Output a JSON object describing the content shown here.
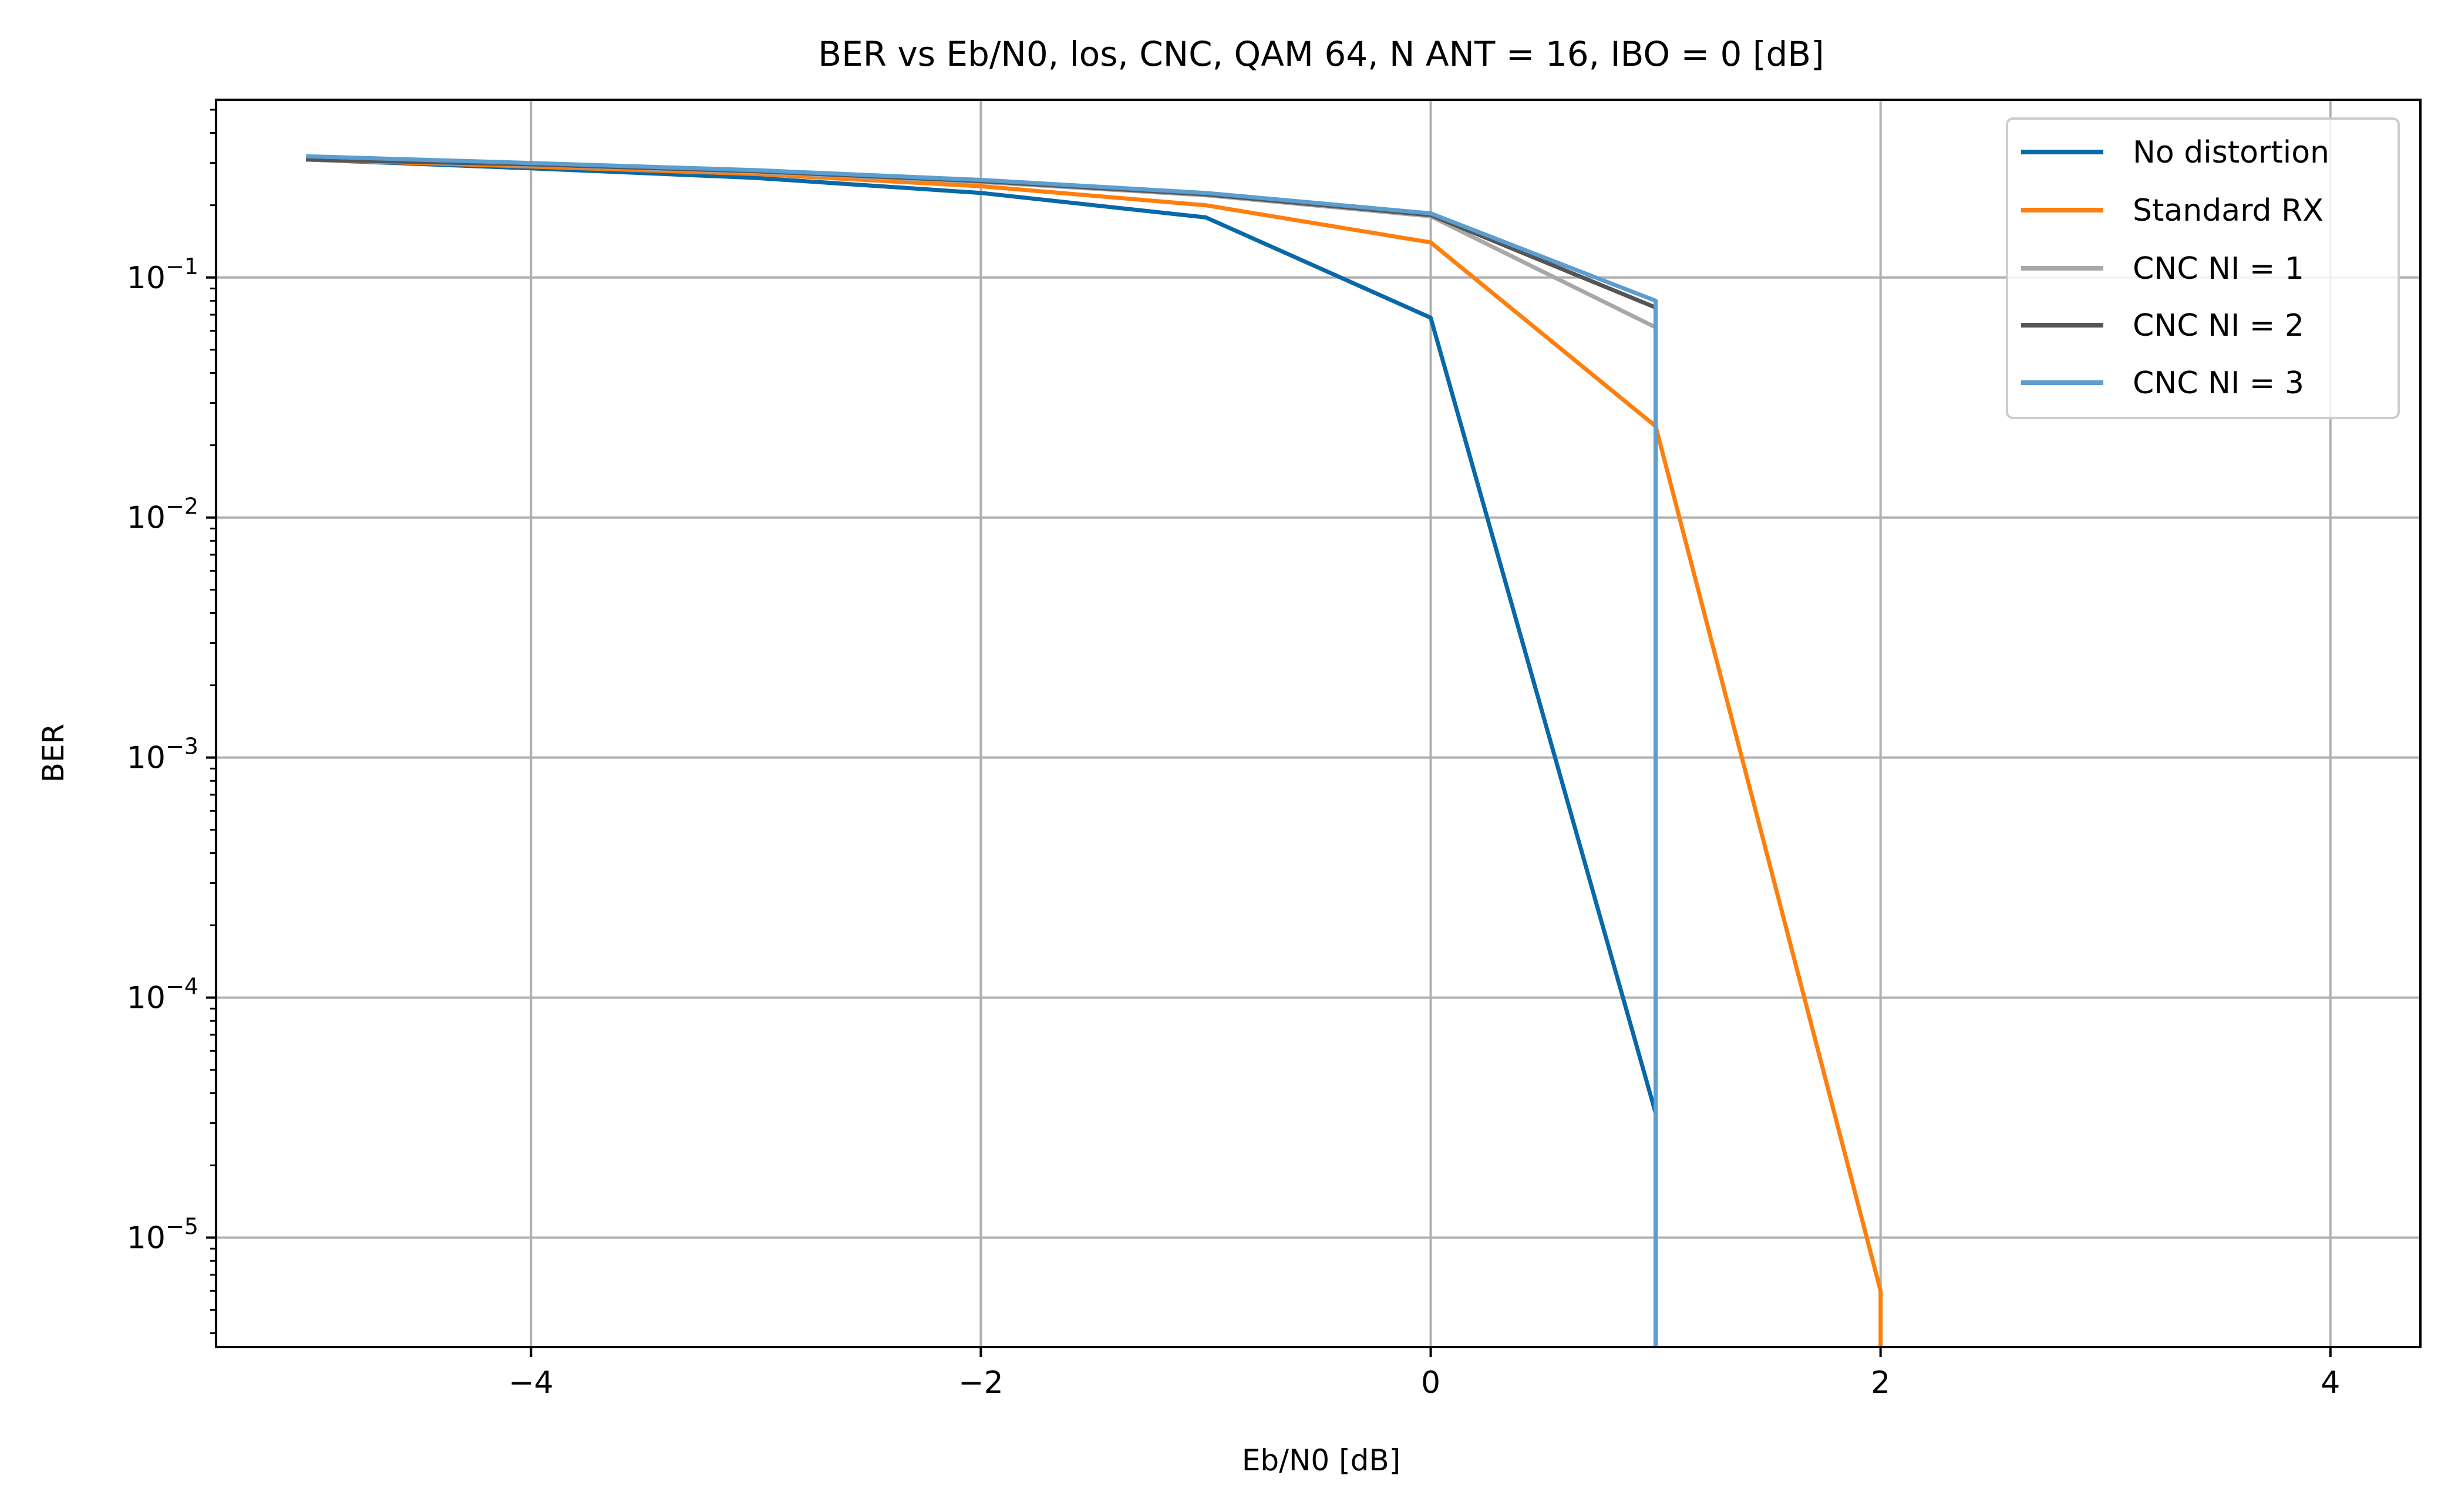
{
  "chart_data": {
    "type": "line",
    "title": "BER vs Eb/N0, los, CNC, QAM 64, N ANT = 16, IBO = 0 [dB]",
    "xlabel": "Eb/N0 [dB]",
    "ylabel": "BER",
    "x_scale": "linear",
    "y_scale": "log",
    "xlim": [
      -5.4,
      4.4
    ],
    "ylim": [
      3.5e-06,
      0.55
    ],
    "grid": true,
    "legend_position": "top-right",
    "x_ticks": [
      {
        "value": -4,
        "label": "−4"
      },
      {
        "value": -2,
        "label": "−2"
      },
      {
        "value": 0,
        "label": "0"
      },
      {
        "value": 2,
        "label": "2"
      },
      {
        "value": 4,
        "label": "4"
      }
    ],
    "y_ticks": [
      {
        "value": 0.1,
        "base": "10",
        "exp": "−1"
      },
      {
        "value": 0.01,
        "base": "10",
        "exp": "−2"
      },
      {
        "value": 0.001,
        "base": "10",
        "exp": "−3"
      },
      {
        "value": 0.0001,
        "base": "10",
        "exp": "−4"
      },
      {
        "value": 1e-05,
        "base": "10",
        "exp": "−5"
      }
    ],
    "series": [
      {
        "name": "No distortion",
        "color": "#0868a8",
        "x": [
          -5,
          -4,
          -3,
          -2,
          -1,
          0,
          1,
          1
        ],
        "y": [
          0.31,
          0.285,
          0.26,
          0.225,
          0.178,
          0.068,
          3.3e-05,
          1e-09
        ]
      },
      {
        "name": "Standard RX",
        "color": "#ff7f0e",
        "x": [
          -5,
          -4,
          -3,
          -2,
          -1,
          0,
          1,
          2,
          2
        ],
        "y": [
          0.31,
          0.29,
          0.27,
          0.24,
          0.2,
          0.14,
          0.024,
          6e-06,
          1e-09
        ]
      },
      {
        "name": "CNC NI = 1",
        "color": "#a8a8a8",
        "x": [
          -5,
          -4,
          -3,
          -2,
          -1,
          0,
          1
        ],
        "y": [
          0.31,
          0.295,
          0.275,
          0.25,
          0.22,
          0.18,
          0.062
        ]
      },
      {
        "name": "CNC NI = 2",
        "color": "#555555",
        "x": [
          -5,
          -4,
          -3,
          -2,
          -1,
          0,
          1,
          1
        ],
        "y": [
          0.31,
          0.296,
          0.277,
          0.252,
          0.222,
          0.182,
          0.075,
          1e-09
        ]
      },
      {
        "name": "CNC NI = 3",
        "color": "#5b9ecf",
        "x": [
          -5,
          -4,
          -3,
          -2,
          -1,
          0,
          1,
          1
        ],
        "y": [
          0.32,
          0.3,
          0.28,
          0.255,
          0.225,
          0.185,
          0.08,
          1e-09
        ]
      }
    ]
  }
}
